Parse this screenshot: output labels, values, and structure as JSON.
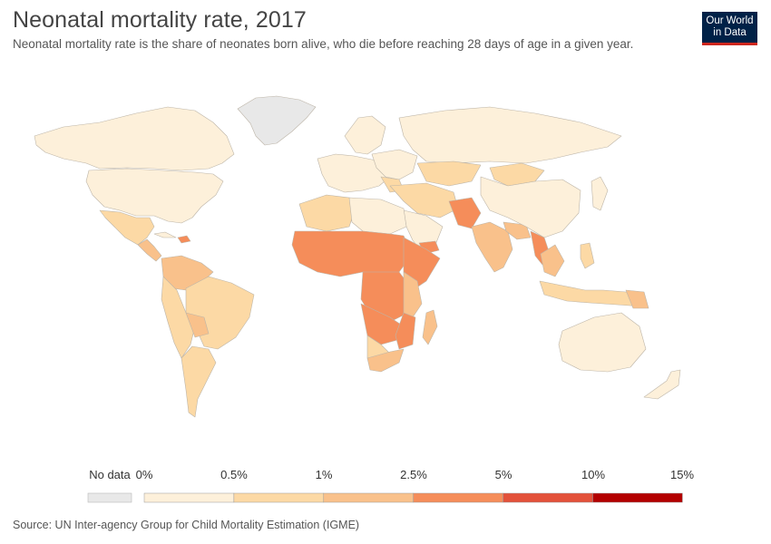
{
  "header": {
    "title": "Neonatal mortality rate, 2017",
    "subtitle": "Neonatal mortality rate is the share of neonates born alive, who die before reaching 28 days of age in a given year."
  },
  "logo": {
    "line1": "Our World",
    "line2": "in Data"
  },
  "legend": {
    "no_data_label": "No data",
    "bins": [
      {
        "from": "0%",
        "to": "0.5%",
        "color": "#fdf0da"
      },
      {
        "from": "0.5%",
        "to": "1%",
        "color": "#fcd9a5"
      },
      {
        "from": "1%",
        "to": "2.5%",
        "color": "#f9c18b"
      },
      {
        "from": "2.5%",
        "to": "5%",
        "color": "#f58d5a"
      },
      {
        "from": "5%",
        "to": "10%",
        "color": "#e3513a"
      },
      {
        "from": "10%",
        "to": "15%",
        "color": "#b30000"
      }
    ],
    "tick_labels": [
      "0%",
      "0.5%",
      "1%",
      "2.5%",
      "5%",
      "10%",
      "15%"
    ],
    "no_data_color": "#e8e8e8"
  },
  "map_colors": {
    "no_data": "#e8e8e8",
    "very_low": "#fdf0da",
    "low": "#fcd9a5",
    "mid": "#f9c18b",
    "high": "#f58d5a",
    "border": "#bdb5a8"
  },
  "source": "Source: UN Inter-agency Group for Child Mortality Estimation (IGME)"
}
